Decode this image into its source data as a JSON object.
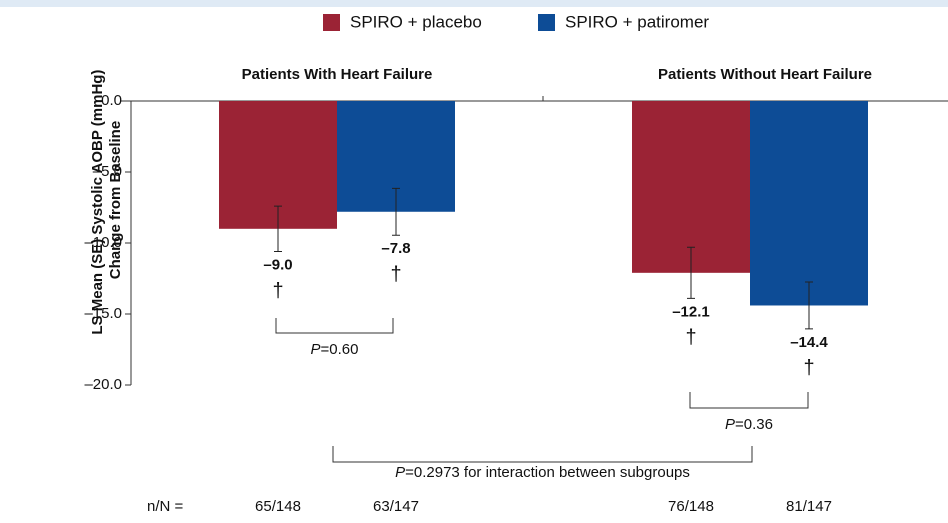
{
  "chart_data": {
    "type": "bar",
    "y_label": [
      "LS Mean (SE) Systolic AOBP (mmHg)",
      "Change from Baseline"
    ],
    "categories": [
      "Patients With Heart Failure",
      "Patients Without Heart Failure"
    ],
    "series": [
      {
        "name": "SPIRO + placebo",
        "color": "#9b2335",
        "values": [
          -9.0,
          -12.1
        ],
        "value_labels": [
          "–9.0",
          "–12.1"
        ],
        "errors": [
          1.6,
          1.8
        ],
        "markers": [
          "†",
          "†"
        ],
        "n": [
          "65/148",
          "76/148"
        ]
      },
      {
        "name": "SPIRO + patiromer",
        "color": "#0d4c96",
        "values": [
          -7.8,
          -14.4
        ],
        "value_labels": [
          "–7.8",
          "–14.4"
        ],
        "errors": [
          1.65,
          1.65
        ],
        "markers": [
          "†",
          "†"
        ],
        "n": [
          "63/147",
          "81/147"
        ]
      }
    ],
    "ylim": [
      -20,
      0
    ],
    "yticks": [
      {
        "value": 0,
        "label": "0.0"
      },
      {
        "value": -5,
        "label": "–5.0"
      },
      {
        "value": -10,
        "label": "–10.0"
      },
      {
        "value": -15,
        "label": "–15.0"
      },
      {
        "value": -20,
        "label": "–20.0"
      }
    ],
    "n_label": "n/N =",
    "comparisons": [
      {
        "prefix": "P",
        "text": "=0.60"
      },
      {
        "prefix": "P",
        "text": "=0.36"
      },
      {
        "prefix": "P",
        "text": "=0.2973 for interaction between subgroups"
      }
    ]
  }
}
